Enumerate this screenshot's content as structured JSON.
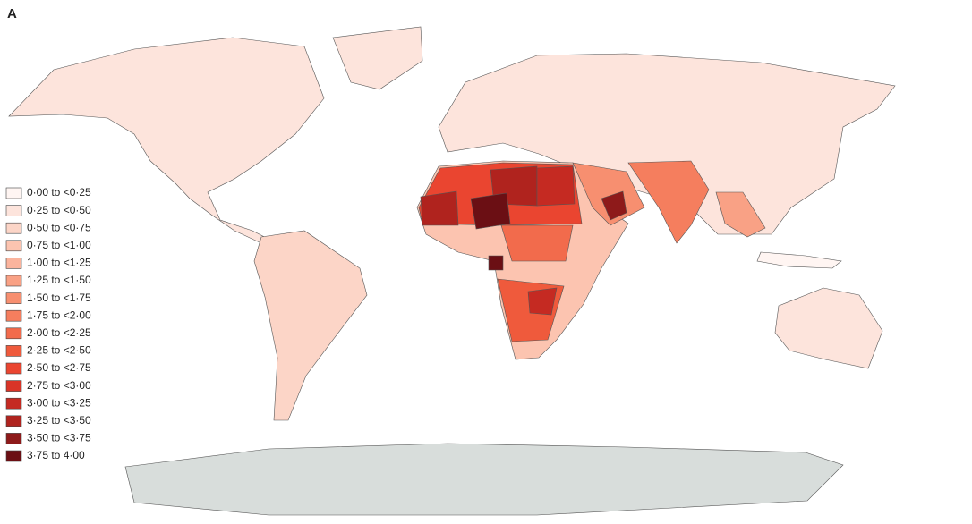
{
  "panel_label": "A",
  "legend": {
    "items": [
      {
        "label": "0·00 to <0·25",
        "color": "#fff5f2"
      },
      {
        "label": "0·25 to <0·50",
        "color": "#fde4dc"
      },
      {
        "label": "0·50 to <0·75",
        "color": "#fcd5c7"
      },
      {
        "label": "0·75 to <1·00",
        "color": "#fcc4b0"
      },
      {
        "label": "1·00 to <1·25",
        "color": "#fbb49d"
      },
      {
        "label": "1·25 to <1·50",
        "color": "#f9a185"
      },
      {
        "label": "1·50 to <1·75",
        "color": "#f78f70"
      },
      {
        "label": "1·75 to <2·00",
        "color": "#f57e5e"
      },
      {
        "label": "2·00 to <2·25",
        "color": "#f26b4c"
      },
      {
        "label": "2·25 to <2·50",
        "color": "#ef5a3c"
      },
      {
        "label": "2·50 to <2·75",
        "color": "#ea4530"
      },
      {
        "label": "2·75 to <3·00",
        "color": "#d93427"
      },
      {
        "label": "3·00 to <3·25",
        "color": "#c52a22"
      },
      {
        "label": "3·25 to <3·50",
        "color": "#b0231e"
      },
      {
        "label": "3·50 to <3·75",
        "color": "#8e1a1a"
      },
      {
        "label": "3·75 to 4·00",
        "color": "#6b0f14"
      }
    ]
  }
}
